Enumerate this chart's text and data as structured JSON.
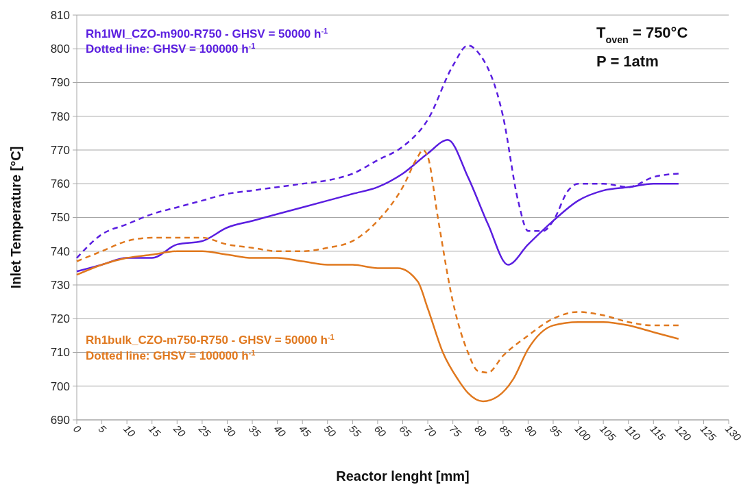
{
  "chart_data": {
    "type": "line",
    "xlabel": "Reactor lenght [mm]",
    "ylabel": "Inlet Temperature [°C]",
    "xlim": [
      0,
      130
    ],
    "xticks": [
      0,
      5,
      10,
      15,
      20,
      25,
      30,
      35,
      40,
      45,
      50,
      55,
      60,
      65,
      70,
      75,
      80,
      85,
      90,
      95,
      100,
      105,
      110,
      115,
      120,
      125,
      130
    ],
    "ylim": [
      690,
      810
    ],
    "yticks": [
      690,
      700,
      710,
      720,
      730,
      740,
      750,
      760,
      770,
      780,
      790,
      800,
      810
    ],
    "grid": "y",
    "annotations": [
      "Rh1IWI_CZO-m900-R750 - GHSV = 50000 h$^{-1}$",
      "Dotted line: GHSV = 100000 h$^{-1}$",
      "Rh1bulk_CZO-m750-R750 - GHSV = 50000 h$^{-1}$",
      "Dotted line: GHSV = 100000 h$^{-1}$",
      "T$_{oven}$ = 750°C",
      "P = 1atm"
    ],
    "series": [
      {
        "color": "#5a1ee0",
        "line_style": "solid",
        "x": [
          0,
          5,
          10,
          15,
          20,
          25,
          30,
          35,
          40,
          45,
          50,
          55,
          60,
          65,
          70,
          74,
          78,
          82,
          86,
          90,
          95,
          100,
          105,
          110,
          115,
          120
        ],
        "values": [
          734,
          736,
          738,
          738,
          742,
          743,
          747,
          749,
          751,
          753,
          755,
          757,
          759,
          763,
          769,
          773,
          762,
          748,
          736,
          742,
          749,
          755,
          758,
          759,
          760,
          760
        ]
      },
      {
        "color": "#5a1ee0",
        "line_style": "dashed",
        "x": [
          0,
          5,
          10,
          15,
          20,
          25,
          30,
          35,
          40,
          45,
          50,
          55,
          60,
          65,
          70,
          75,
          78,
          80,
          85,
          88,
          90,
          93,
          95,
          98,
          100,
          105,
          110,
          115,
          120
        ],
        "values": [
          738,
          745,
          748,
          751,
          753,
          755,
          757,
          758,
          759,
          760,
          761,
          763,
          767,
          771,
          779,
          795,
          801,
          799,
          780,
          755,
          746,
          746,
          749,
          758,
          760,
          760,
          759,
          762,
          763
        ]
      },
      {
        "color": "#e0781e",
        "line_style": "solid",
        "x": [
          0,
          5,
          10,
          15,
          20,
          25,
          30,
          35,
          40,
          45,
          50,
          55,
          60,
          64,
          68,
          70,
          73,
          76,
          78,
          81,
          84,
          87,
          90,
          95,
          100,
          105,
          110,
          115,
          120
        ],
        "values": [
          733,
          736,
          738,
          739,
          740,
          740,
          739,
          738,
          738,
          737,
          736,
          736,
          735,
          735,
          731,
          723,
          710,
          702,
          698,
          695.5,
          697,
          702,
          711,
          718,
          719,
          719,
          718,
          716,
          714
        ]
      },
      {
        "color": "#e0781e",
        "line_style": "dashed",
        "x": [
          0,
          5,
          10,
          15,
          20,
          25,
          30,
          35,
          40,
          45,
          50,
          55,
          60,
          65,
          68,
          69,
          70,
          72,
          75,
          78,
          80,
          82,
          85,
          90,
          95,
          100,
          105,
          110,
          115,
          120
        ],
        "values": [
          737,
          740,
          743,
          744,
          744,
          744,
          742,
          741,
          740,
          740,
          741,
          743,
          749,
          759,
          768,
          770,
          768,
          750,
          725,
          710,
          704.5,
          704,
          709,
          715,
          720,
          722,
          721,
          719,
          718,
          718
        ]
      }
    ]
  }
}
